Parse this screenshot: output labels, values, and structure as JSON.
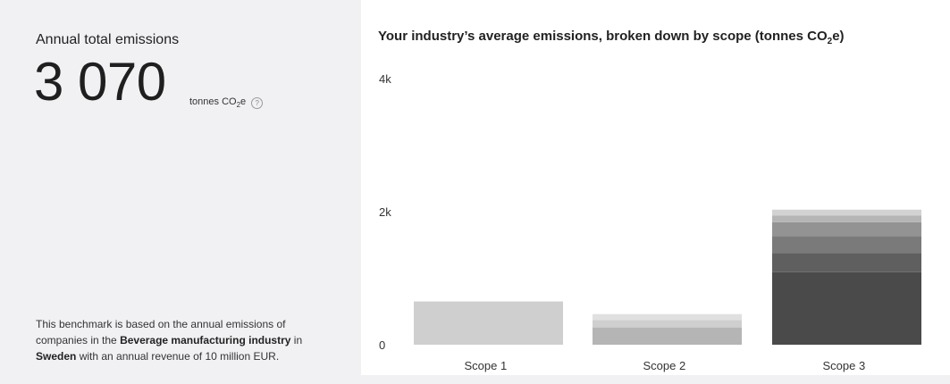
{
  "summary": {
    "title": "Annual total emissions",
    "value": "3 070",
    "unit_main": "tonnes CO",
    "unit_sub": "2",
    "unit_tail": "e",
    "help_icon": "question-circle-icon"
  },
  "benchmark": {
    "part1": "This benchmark is based on the annual emissions of companies in the ",
    "industry": "Beverage manufacturing industry",
    "part2": " in ",
    "country": "Sweden",
    "part3": " with an annual revenue of 10 million EUR."
  },
  "chart_title": {
    "main": "Your industry’s average emissions, broken down by scope (tonnes CO",
    "sub": "2",
    "tail": "e)"
  },
  "chart_data": {
    "type": "bar",
    "stacked": true,
    "categories": [
      "Scope 1",
      "Scope 2",
      "Scope 3"
    ],
    "y_ticks": [
      "4k",
      "2k",
      "0"
    ],
    "ylim": [
      0,
      4000
    ],
    "grid": false,
    "segments": [
      [
        {
          "value": 650,
          "color": "#cfcfcf"
        }
      ],
      [
        {
          "value": 260,
          "color": "#b5b5b5"
        },
        {
          "value": 110,
          "color": "#cfcfcf"
        },
        {
          "value": 90,
          "color": "#e0e0e0"
        }
      ],
      [
        {
          "value": 1090,
          "color": "#4a4a4a"
        },
        {
          "value": 290,
          "color": "#5f5f5f"
        },
        {
          "value": 250,
          "color": "#7a7a7a"
        },
        {
          "value": 210,
          "color": "#939393"
        },
        {
          "value": 100,
          "color": "#b5b5b5"
        },
        {
          "value": 90,
          "color": "#d2d2d2"
        }
      ]
    ]
  }
}
